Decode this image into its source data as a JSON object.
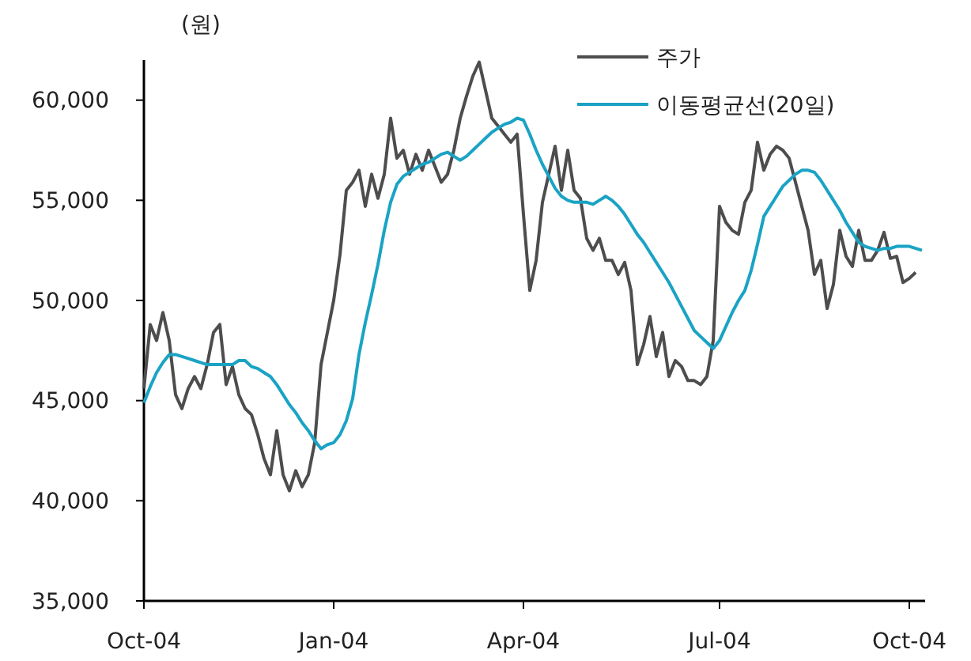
{
  "chart_data": {
    "type": "line",
    "ylabel": "(원)",
    "ylim": [
      35000,
      62000
    ],
    "categories": [
      "Oct-04",
      null,
      null,
      null,
      null,
      null,
      null,
      null,
      null,
      null,
      null,
      null,
      null,
      null,
      null,
      null,
      null,
      null,
      null,
      null,
      null,
      null,
      null,
      null,
      null,
      null,
      null,
      null,
      null,
      null,
      "Jan-04",
      null,
      null,
      null,
      null,
      null,
      null,
      null,
      null,
      null,
      null,
      null,
      null,
      null,
      null,
      null,
      null,
      null,
      null,
      null,
      null,
      null,
      null,
      null,
      null,
      null,
      null,
      null,
      null,
      null,
      "Apr-04",
      null,
      null,
      null,
      null,
      null,
      null,
      null,
      null,
      null,
      null,
      null,
      null,
      null,
      null,
      null,
      null,
      null,
      null,
      null,
      null,
      null,
      null,
      null,
      null,
      null,
      null,
      null,
      null,
      null,
      null,
      "Jul-04",
      null,
      null,
      null,
      null,
      null,
      null,
      null,
      null,
      null,
      null,
      null,
      null,
      null,
      null,
      null,
      null,
      null,
      null,
      null,
      null,
      null,
      null,
      null,
      null,
      null,
      null,
      null,
      null,
      null,
      "Oct-04",
      null,
      null
    ],
    "yticks": [
      {
        "value": 35000,
        "label": "35,000"
      },
      {
        "value": 40000,
        "label": "40,000"
      },
      {
        "value": 45000,
        "label": "45,000"
      },
      {
        "value": 50000,
        "label": "50,000"
      },
      {
        "value": 55000,
        "label": "55,000"
      },
      {
        "value": 60000,
        "label": "60,000"
      }
    ],
    "grid": false,
    "legend": "top right",
    "marker": "none",
    "line_style": "solid",
    "series": [
      {
        "name": "주가",
        "color": "#4d4d4d",
        "values": [
          45600,
          48800,
          48000,
          49400,
          48000,
          45300,
          44600,
          45600,
          46200,
          45600,
          46800,
          48400,
          48800,
          45800,
          46700,
          45300,
          44600,
          44300,
          43300,
          42100,
          41300,
          43500,
          41300,
          40500,
          41500,
          40700,
          41300,
          42900,
          46800,
          48400,
          50000,
          52300,
          55500,
          55900,
          56500,
          54700,
          56300,
          55100,
          56300,
          59100,
          57100,
          57500,
          56300,
          57300,
          56500,
          57500,
          56700,
          55900,
          56300,
          57500,
          59100,
          60200,
          61200,
          61900,
          60500,
          59100,
          58700,
          58300,
          57900,
          58300,
          54300,
          50500,
          52000,
          54900,
          56300,
          57700,
          55500,
          57500,
          55500,
          55100,
          53100,
          52500,
          53100,
          52000,
          52000,
          51300,
          51900,
          50500,
          46800,
          47800,
          49200,
          47200,
          48400,
          46200,
          47000,
          46700,
          46000,
          46000,
          45800,
          46200,
          48000,
          54700,
          53900,
          53500,
          53300,
          54900,
          55500,
          57900,
          56500,
          57300,
          57700,
          57500,
          57100,
          55900,
          54700,
          53500,
          51300,
          52000,
          49600,
          50800,
          53500,
          52200,
          51700,
          53500,
          52000,
          52000,
          52500,
          53400,
          52100,
          52200,
          50900,
          51100,
          51400,
          null
        ]
      },
      {
        "name": "이동평균선(20일)",
        "color": "#1aa3c4",
        "values": [
          44900,
          45700,
          46400,
          46900,
          47300,
          47300,
          47200,
          47100,
          47000,
          46900,
          46800,
          46800,
          46800,
          46800,
          46800,
          47000,
          47000,
          46700,
          46600,
          46400,
          46200,
          45800,
          45300,
          44800,
          44400,
          43900,
          43500,
          43000,
          42600,
          42800,
          42900,
          43300,
          44000,
          45100,
          47300,
          48900,
          50300,
          51800,
          53500,
          54900,
          55800,
          56200,
          56400,
          56600,
          56800,
          56900,
          57100,
          57300,
          57400,
          57200,
          57000,
          57200,
          57500,
          57800,
          58100,
          58400,
          58600,
          58800,
          58900,
          59100,
          59000,
          58300,
          57500,
          56800,
          56200,
          55600,
          55200,
          55000,
          54900,
          54900,
          54900,
          54800,
          55000,
          55200,
          55000,
          54700,
          54300,
          53800,
          53300,
          52900,
          52400,
          51900,
          51400,
          50900,
          50300,
          49700,
          49100,
          48500,
          48200,
          47900,
          47600,
          48000,
          48700,
          49400,
          50000,
          50500,
          51500,
          52800,
          54200,
          54700,
          55200,
          55700,
          56000,
          56300,
          56500,
          56500,
          56400,
          56000,
          55500,
          55000,
          54500,
          53900,
          53400,
          52900,
          52700,
          52600,
          52500,
          52600,
          52600,
          52700,
          52700,
          52700,
          52600,
          52500
        ]
      }
    ]
  }
}
